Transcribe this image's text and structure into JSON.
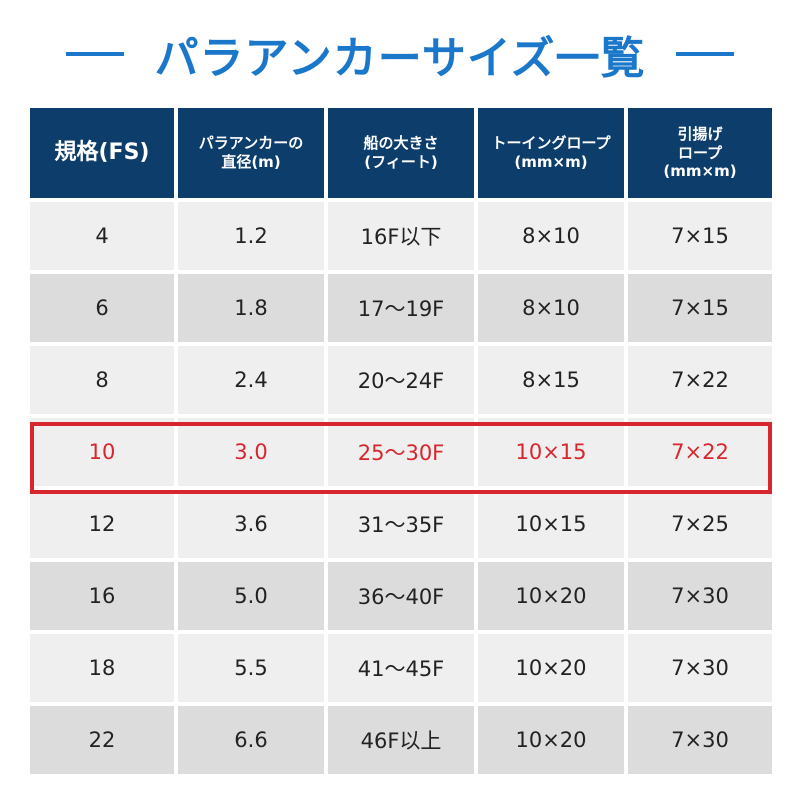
{
  "title": "パラアンカーサイズ一覧",
  "colors": {
    "title": "#1a77c9",
    "header_bg": "#0c3d6b",
    "row_light": "#efefef",
    "row_dark": "#dcdcdc",
    "highlight": "#d8262e"
  },
  "table": {
    "headers": [
      {
        "lines": [
          "規格(FS)"
        ]
      },
      {
        "lines": [
          "パラアンカーの",
          "直径(m)"
        ]
      },
      {
        "lines": [
          "船の大きさ",
          "(フィート)"
        ]
      },
      {
        "lines": [
          "トーイングロープ",
          "(mm×m)"
        ]
      },
      {
        "lines": [
          "引揚げ",
          "ロープ",
          "(mm×m)"
        ]
      }
    ],
    "rows": [
      [
        "4",
        "1.2",
        "16F以下",
        "8×10",
        "7×15"
      ],
      [
        "6",
        "1.8",
        "17〜19F",
        "8×10",
        "7×15"
      ],
      [
        "8",
        "2.4",
        "20〜24F",
        "8×15",
        "7×22"
      ],
      [
        "10",
        "3.0",
        "25〜30F",
        "10×15",
        "7×22"
      ],
      [
        "12",
        "3.6",
        "31〜35F",
        "10×15",
        "7×25"
      ],
      [
        "16",
        "5.0",
        "36〜40F",
        "10×20",
        "7×30"
      ],
      [
        "18",
        "5.5",
        "41〜45F",
        "10×20",
        "7×30"
      ],
      [
        "22",
        "6.6",
        "46F以上",
        "10×20",
        "7×30"
      ]
    ],
    "highlighted_row": "10"
  }
}
